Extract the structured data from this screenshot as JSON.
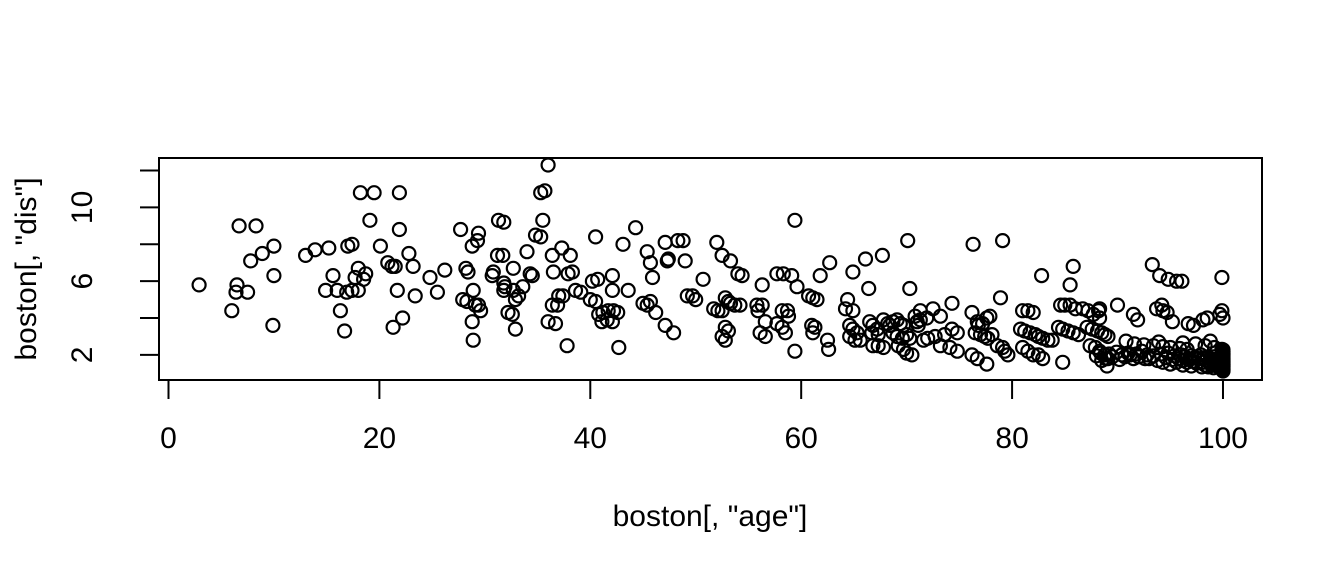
{
  "figure": {
    "background": "#ffffff",
    "title": ""
  },
  "chart_data": {
    "type": "scatter",
    "title": "",
    "xlabel": "boston[, \"age\"]",
    "ylabel": "boston[, \"dis\"]",
    "xlim": [
      -0.9,
      103.7
    ],
    "ylim": [
      0.64,
      12.68
    ],
    "x_ticks": [
      0,
      20,
      40,
      60,
      80,
      100
    ],
    "y_ticks": [
      2,
      4,
      6,
      8,
      10,
      12
    ],
    "y_tick_labeled": [
      2,
      6,
      10
    ],
    "grid": false,
    "legend": null,
    "marker": "open-circle",
    "colors": {
      "points": "#000000",
      "axis": "#000000",
      "background": "#ffffff"
    },
    "points": [
      [
        6.7,
        9.0
      ],
      [
        8.3,
        9.0
      ],
      [
        10.0,
        7.9
      ],
      [
        7.8,
        7.1
      ],
      [
        8.9,
        7.5
      ],
      [
        13.0,
        7.4
      ],
      [
        13.9,
        7.7
      ],
      [
        15.2,
        7.8
      ],
      [
        17.0,
        7.9
      ],
      [
        10.0,
        6.3
      ],
      [
        2.9,
        5.8
      ],
      [
        6.5,
        5.8
      ],
      [
        6.4,
        5.4
      ],
      [
        7.5,
        5.4
      ],
      [
        15.6,
        6.3
      ],
      [
        14.9,
        5.5
      ],
      [
        16.0,
        5.5
      ],
      [
        16.9,
        5.4
      ],
      [
        16.3,
        4.4
      ],
      [
        6.0,
        4.4
      ],
      [
        9.9,
        3.6
      ],
      [
        16.7,
        3.3
      ],
      [
        18.2,
        10.8
      ],
      [
        19.5,
        10.8
      ],
      [
        21.9,
        10.8
      ],
      [
        19.1,
        9.3
      ],
      [
        21.9,
        8.8
      ],
      [
        17.4,
        8.0
      ],
      [
        20.1,
        7.9
      ],
      [
        20.8,
        7.0
      ],
      [
        21.2,
        6.8
      ],
      [
        21.5,
        6.8
      ],
      [
        22.8,
        7.5
      ],
      [
        23.2,
        6.8
      ],
      [
        18.0,
        6.7
      ],
      [
        18.7,
        6.4
      ],
      [
        17.7,
        6.2
      ],
      [
        18.5,
        6.1
      ],
      [
        17.4,
        5.5
      ],
      [
        18.0,
        5.5
      ],
      [
        21.7,
        5.5
      ],
      [
        23.4,
        5.2
      ],
      [
        24.8,
        6.2
      ],
      [
        26.2,
        6.6
      ],
      [
        25.5,
        5.4
      ],
      [
        27.7,
        8.8
      ],
      [
        29.4,
        8.6
      ],
      [
        29.3,
        8.2
      ],
      [
        28.8,
        7.9
      ],
      [
        28.2,
        6.7
      ],
      [
        28.4,
        6.5
      ],
      [
        27.9,
        5.0
      ],
      [
        28.3,
        4.9
      ],
      [
        28.9,
        5.5
      ],
      [
        29.1,
        4.7
      ],
      [
        29.4,
        4.7
      ],
      [
        29.6,
        4.4
      ],
      [
        28.8,
        3.8
      ],
      [
        28.9,
        2.8
      ],
      [
        31.3,
        9.3
      ],
      [
        31.8,
        9.2
      ],
      [
        31.2,
        7.4
      ],
      [
        31.7,
        7.4
      ],
      [
        30.8,
        6.5
      ],
      [
        30.7,
        6.3
      ],
      [
        31.8,
        5.9
      ],
      [
        31.9,
        5.7
      ],
      [
        31.8,
        5.5
      ],
      [
        32.7,
        6.7
      ],
      [
        32.7,
        5.5
      ],
      [
        33.2,
        5.2
      ],
      [
        32.9,
        5.0
      ],
      [
        32.2,
        4.3
      ],
      [
        32.6,
        4.2
      ],
      [
        32.9,
        3.4
      ],
      [
        34.0,
        7.6
      ],
      [
        34.3,
        6.4
      ],
      [
        34.5,
        6.3
      ],
      [
        33.6,
        5.7
      ],
      [
        34.8,
        8.5
      ],
      [
        35.3,
        10.8
      ],
      [
        21.3,
        3.5
      ],
      [
        22.2,
        4.0
      ],
      [
        36.0,
        12.3
      ],
      [
        35.7,
        10.9
      ],
      [
        35.5,
        9.3
      ],
      [
        35.3,
        8.4
      ],
      [
        40.5,
        8.4
      ],
      [
        44.3,
        8.9
      ],
      [
        43.1,
        8.0
      ],
      [
        36.4,
        7.4
      ],
      [
        38.1,
        7.4
      ],
      [
        37.3,
        7.8
      ],
      [
        36.5,
        6.5
      ],
      [
        37.9,
        6.4
      ],
      [
        38.3,
        6.5
      ],
      [
        40.2,
        6.0
      ],
      [
        40.7,
        6.1
      ],
      [
        42.1,
        6.3
      ],
      [
        42.1,
        5.5
      ],
      [
        43.6,
        5.5
      ],
      [
        38.6,
        5.5
      ],
      [
        39.1,
        5.4
      ],
      [
        37.0,
        5.2
      ],
      [
        37.4,
        5.2
      ],
      [
        36.4,
        4.7
      ],
      [
        36.9,
        4.7
      ],
      [
        36.0,
        3.8
      ],
      [
        36.7,
        3.7
      ],
      [
        37.8,
        2.5
      ],
      [
        40.0,
        5.0
      ],
      [
        40.5,
        4.9
      ],
      [
        40.8,
        4.2
      ],
      [
        41.2,
        4.3
      ],
      [
        41.7,
        4.4
      ],
      [
        42.2,
        4.4
      ],
      [
        42.6,
        4.3
      ],
      [
        41.1,
        3.8
      ],
      [
        41.6,
        3.9
      ],
      [
        42.1,
        3.8
      ],
      [
        42.7,
        2.4
      ],
      [
        45.4,
        7.6
      ],
      [
        45.7,
        7.0
      ],
      [
        45.9,
        6.2
      ],
      [
        45.0,
        4.8
      ],
      [
        45.4,
        4.7
      ],
      [
        45.7,
        4.9
      ],
      [
        46.2,
        4.3
      ],
      [
        47.1,
        8.1
      ],
      [
        47.4,
        7.2
      ],
      [
        47.3,
        7.1
      ],
      [
        48.3,
        8.2
      ],
      [
        48.8,
        8.2
      ],
      [
        49.0,
        7.1
      ],
      [
        47.1,
        3.6
      ],
      [
        47.9,
        3.2
      ],
      [
        49.2,
        5.2
      ],
      [
        49.7,
        5.2
      ],
      [
        50.0,
        5.0
      ],
      [
        50.7,
        6.1
      ],
      [
        52.0,
        8.1
      ],
      [
        52.5,
        7.4
      ],
      [
        52.8,
        5.1
      ],
      [
        53.1,
        4.9
      ],
      [
        51.7,
        4.5
      ],
      [
        52.1,
        4.4
      ],
      [
        52.5,
        4.4
      ],
      [
        52.8,
        3.5
      ],
      [
        53.1,
        3.3
      ],
      [
        52.5,
        3.0
      ],
      [
        52.8,
        2.8
      ],
      [
        59.4,
        9.3
      ],
      [
        70.1,
        8.2
      ],
      [
        66.1,
        7.2
      ],
      [
        67.7,
        7.4
      ],
      [
        62.7,
        7.0
      ],
      [
        54.0,
        6.4
      ],
      [
        54.4,
        6.3
      ],
      [
        53.3,
        7.1
      ],
      [
        56.3,
        5.8
      ],
      [
        57.7,
        6.4
      ],
      [
        58.3,
        6.4
      ],
      [
        59.1,
        6.3
      ],
      [
        59.6,
        5.7
      ],
      [
        61.1,
        5.1
      ],
      [
        61.5,
        5.0
      ],
      [
        61.8,
        6.3
      ],
      [
        64.9,
        6.5
      ],
      [
        66.4,
        5.6
      ],
      [
        70.3,
        5.6
      ],
      [
        53.3,
        4.8
      ],
      [
        53.7,
        4.7
      ],
      [
        54.2,
        4.7
      ],
      [
        55.8,
        4.7
      ],
      [
        56.3,
        4.7
      ],
      [
        55.9,
        4.4
      ],
      [
        56.6,
        3.8
      ],
      [
        56.1,
        3.2
      ],
      [
        56.6,
        3.0
      ],
      [
        57.7,
        3.7
      ],
      [
        58.2,
        3.5
      ],
      [
        58.5,
        3.2
      ],
      [
        58.2,
        4.4
      ],
      [
        58.7,
        4.4
      ],
      [
        58.8,
        4.1
      ],
      [
        60.7,
        5.2
      ],
      [
        61.0,
        3.6
      ],
      [
        61.3,
        3.5
      ],
      [
        61.1,
        3.2
      ],
      [
        59.4,
        2.2
      ],
      [
        62.5,
        2.8
      ],
      [
        62.6,
        2.3
      ],
      [
        64.4,
        5.0
      ],
      [
        64.2,
        4.5
      ],
      [
        64.9,
        4.4
      ],
      [
        64.6,
        3.6
      ],
      [
        64.9,
        3.4
      ],
      [
        65.3,
        3.2
      ],
      [
        64.6,
        3.0
      ],
      [
        65.1,
        2.8
      ],
      [
        65.6,
        2.8
      ],
      [
        66.5,
        3.8
      ],
      [
        66.8,
        3.6
      ],
      [
        67.2,
        3.4
      ],
      [
        66.7,
        3.2
      ],
      [
        67.3,
        3.1
      ],
      [
        67.8,
        3.9
      ],
      [
        68.2,
        3.7
      ],
      [
        68.4,
        3.6
      ],
      [
        68.7,
        3.8
      ],
      [
        69.1,
        3.9
      ],
      [
        69.4,
        3.7
      ],
      [
        69.7,
        3.6
      ],
      [
        66.8,
        2.5
      ],
      [
        67.3,
        2.5
      ],
      [
        67.8,
        2.4
      ],
      [
        68.7,
        3.2
      ],
      [
        69.1,
        3.0
      ],
      [
        69.6,
        2.9
      ],
      [
        70.0,
        3.1
      ],
      [
        70.3,
        2.9
      ],
      [
        69.2,
        2.5
      ],
      [
        69.7,
        2.3
      ],
      [
        70.0,
        2.1
      ],
      [
        70.5,
        2.0
      ],
      [
        70.8,
        4.1
      ],
      [
        71.0,
        3.8
      ],
      [
        71.1,
        3.6
      ],
      [
        76.3,
        8.0
      ],
      [
        79.1,
        8.2
      ],
      [
        82.8,
        6.3
      ],
      [
        85.8,
        6.8
      ],
      [
        85.5,
        5.8
      ],
      [
        78.9,
        5.1
      ],
      [
        74.3,
        4.8
      ],
      [
        72.5,
        4.5
      ],
      [
        71.3,
        4.4
      ],
      [
        73.2,
        4.1
      ],
      [
        71.9,
        4.0
      ],
      [
        71.3,
        3.9
      ],
      [
        74.3,
        3.4
      ],
      [
        74.8,
        3.2
      ],
      [
        73.6,
        3.1
      ],
      [
        72.7,
        3.0
      ],
      [
        72.0,
        2.9
      ],
      [
        71.6,
        2.8
      ],
      [
        73.2,
        2.5
      ],
      [
        74.1,
        2.4
      ],
      [
        74.8,
        2.2
      ],
      [
        76.2,
        4.3
      ],
      [
        76.7,
        3.8
      ],
      [
        76.8,
        3.6
      ],
      [
        77.2,
        3.7
      ],
      [
        77.6,
        4.0
      ],
      [
        77.9,
        4.1
      ],
      [
        76.5,
        3.2
      ],
      [
        77.0,
        3.1
      ],
      [
        77.4,
        3.0
      ],
      [
        77.7,
        2.9
      ],
      [
        78.1,
        3.1
      ],
      [
        76.2,
        2.0
      ],
      [
        76.7,
        1.8
      ],
      [
        77.6,
        1.5
      ],
      [
        78.6,
        2.5
      ],
      [
        79.1,
        2.4
      ],
      [
        79.3,
        2.2
      ],
      [
        79.6,
        2.0
      ],
      [
        81.0,
        4.4
      ],
      [
        81.5,
        4.4
      ],
      [
        82.0,
        4.3
      ],
      [
        80.8,
        3.4
      ],
      [
        81.2,
        3.3
      ],
      [
        81.7,
        3.2
      ],
      [
        82.2,
        3.1
      ],
      [
        82.5,
        3.0
      ],
      [
        82.9,
        2.9
      ],
      [
        83.4,
        2.8
      ],
      [
        83.8,
        2.8
      ],
      [
        81.0,
        2.4
      ],
      [
        81.5,
        2.2
      ],
      [
        82.0,
        2.0
      ],
      [
        82.5,
        2.0
      ],
      [
        82.9,
        1.8
      ],
      [
        84.6,
        4.7
      ],
      [
        85.0,
        4.7
      ],
      [
        85.5,
        4.7
      ],
      [
        86.0,
        4.5
      ],
      [
        84.4,
        3.5
      ],
      [
        84.8,
        3.4
      ],
      [
        85.3,
        3.3
      ],
      [
        85.8,
        3.2
      ],
      [
        86.3,
        3.1
      ],
      [
        84.8,
        1.6
      ],
      [
        86.7,
        4.5
      ],
      [
        87.2,
        4.4
      ],
      [
        87.7,
        4.2
      ],
      [
        88.2,
        4.4
      ],
      [
        87.1,
        3.5
      ],
      [
        87.6,
        3.4
      ],
      [
        88.1,
        3.3
      ],
      [
        88.5,
        3.2
      ],
      [
        88.8,
        3.1
      ],
      [
        89.1,
        3.0
      ],
      [
        87.4,
        2.5
      ],
      [
        87.9,
        2.4
      ],
      [
        88.3,
        2.2
      ],
      [
        88.8,
        2.0
      ],
      [
        89.1,
        1.8
      ],
      [
        89.0,
        1.4
      ],
      [
        88.5,
        1.7
      ],
      [
        93.3,
        6.9
      ],
      [
        94.0,
        6.3
      ],
      [
        94.8,
        6.1
      ],
      [
        95.6,
        6.0
      ],
      [
        96.1,
        6.0
      ],
      [
        99.9,
        6.2
      ],
      [
        90.0,
        4.7
      ],
      [
        88.3,
        4.5
      ],
      [
        88.3,
        4.0
      ],
      [
        91.5,
        4.2
      ],
      [
        91.9,
        3.9
      ],
      [
        93.7,
        4.5
      ],
      [
        94.2,
        4.7
      ],
      [
        94.3,
        4.4
      ],
      [
        94.7,
        4.3
      ],
      [
        95.2,
        3.8
      ],
      [
        96.7,
        3.7
      ],
      [
        97.2,
        3.6
      ],
      [
        98.1,
        3.9
      ],
      [
        98.5,
        4.0
      ],
      [
        99.7,
        4.2
      ],
      [
        99.9,
        4.4
      ],
      [
        100,
        4.0
      ],
      [
        88.0,
        1.95
      ],
      [
        88.4,
        2.1
      ],
      [
        88.9,
        1.8
      ],
      [
        89.2,
        2.05
      ],
      [
        89.5,
        1.9
      ],
      [
        89.9,
        2.15
      ],
      [
        90.2,
        1.75
      ],
      [
        90.4,
        2.0
      ],
      [
        90.7,
        1.9
      ],
      [
        91.0,
        2.1
      ],
      [
        91.2,
        2.0
      ],
      [
        91.5,
        1.8
      ],
      [
        91.8,
        2.05
      ],
      [
        92.0,
        1.9
      ],
      [
        92.3,
        2.2
      ],
      [
        92.6,
        1.8
      ],
      [
        92.8,
        2.0
      ],
      [
        93.0,
        1.8
      ],
      [
        93.4,
        1.95
      ],
      [
        93.8,
        1.7
      ],
      [
        94.1,
        2.05
      ],
      [
        94.3,
        1.6
      ],
      [
        94.6,
        1.85
      ],
      [
        94.8,
        2.1
      ],
      [
        95.0,
        1.5
      ],
      [
        95.2,
        1.75
      ],
      [
        95.4,
        1.95
      ],
      [
        95.6,
        1.6
      ],
      [
        95.8,
        1.8
      ],
      [
        96.0,
        2.0
      ],
      [
        96.2,
        1.45
      ],
      [
        96.2,
        1.7
      ],
      [
        96.4,
        1.9
      ],
      [
        96.6,
        1.6
      ],
      [
        96.8,
        1.75
      ],
      [
        97.0,
        1.95
      ],
      [
        97.0,
        1.4
      ],
      [
        97.2,
        1.65
      ],
      [
        97.3,
        1.85
      ],
      [
        97.5,
        1.55
      ],
      [
        97.7,
        1.8
      ],
      [
        97.9,
        2.0
      ],
      [
        98.0,
        1.35
      ],
      [
        98.1,
        1.6
      ],
      [
        98.2,
        1.85
      ],
      [
        98.3,
        1.45
      ],
      [
        98.4,
        1.7
      ],
      [
        98.5,
        1.9
      ],
      [
        98.6,
        1.35
      ],
      [
        98.7,
        1.6
      ],
      [
        98.8,
        1.8
      ],
      [
        98.9,
        1.45
      ],
      [
        99.0,
        1.65
      ],
      [
        99.1,
        1.9
      ],
      [
        99.1,
        1.3
      ],
      [
        99.2,
        1.55
      ],
      [
        99.3,
        1.75
      ],
      [
        99.4,
        1.4
      ],
      [
        99.5,
        1.6
      ],
      [
        99.6,
        1.8
      ],
      [
        99.7,
        1.3
      ],
      [
        99.8,
        1.5
      ],
      [
        99.9,
        1.7
      ],
      [
        100,
        1.13
      ],
      [
        100,
        1.18
      ],
      [
        100,
        1.22
      ],
      [
        100,
        1.26
      ],
      [
        100,
        1.3
      ],
      [
        100,
        1.35
      ],
      [
        100,
        1.39
      ],
      [
        100,
        1.43
      ],
      [
        100,
        1.47
      ],
      [
        100,
        1.5
      ],
      [
        100,
        1.55
      ],
      [
        100,
        1.59
      ],
      [
        100,
        1.63
      ],
      [
        100,
        1.67
      ],
      [
        100,
        1.72
      ],
      [
        100,
        1.76
      ],
      [
        100,
        1.8
      ],
      [
        100,
        1.85
      ],
      [
        100,
        1.9
      ],
      [
        100,
        1.95
      ],
      [
        100,
        2.0
      ],
      [
        100,
        2.05
      ],
      [
        100,
        2.1
      ],
      [
        100,
        2.16
      ],
      [
        100,
        2.21
      ],
      [
        100,
        2.28
      ],
      [
        90.8,
        2.75
      ],
      [
        91.6,
        2.6
      ],
      [
        92.5,
        2.55
      ],
      [
        93.4,
        2.5
      ],
      [
        93.9,
        2.7
      ],
      [
        94.3,
        2.45
      ],
      [
        95.0,
        2.4
      ],
      [
        95.9,
        2.35
      ],
      [
        96.2,
        2.65
      ],
      [
        96.6,
        2.3
      ],
      [
        97.4,
        2.6
      ],
      [
        98.3,
        2.5
      ],
      [
        98.8,
        2.75
      ],
      [
        99.2,
        2.4
      ],
      [
        99.9,
        2.3
      ]
    ]
  }
}
